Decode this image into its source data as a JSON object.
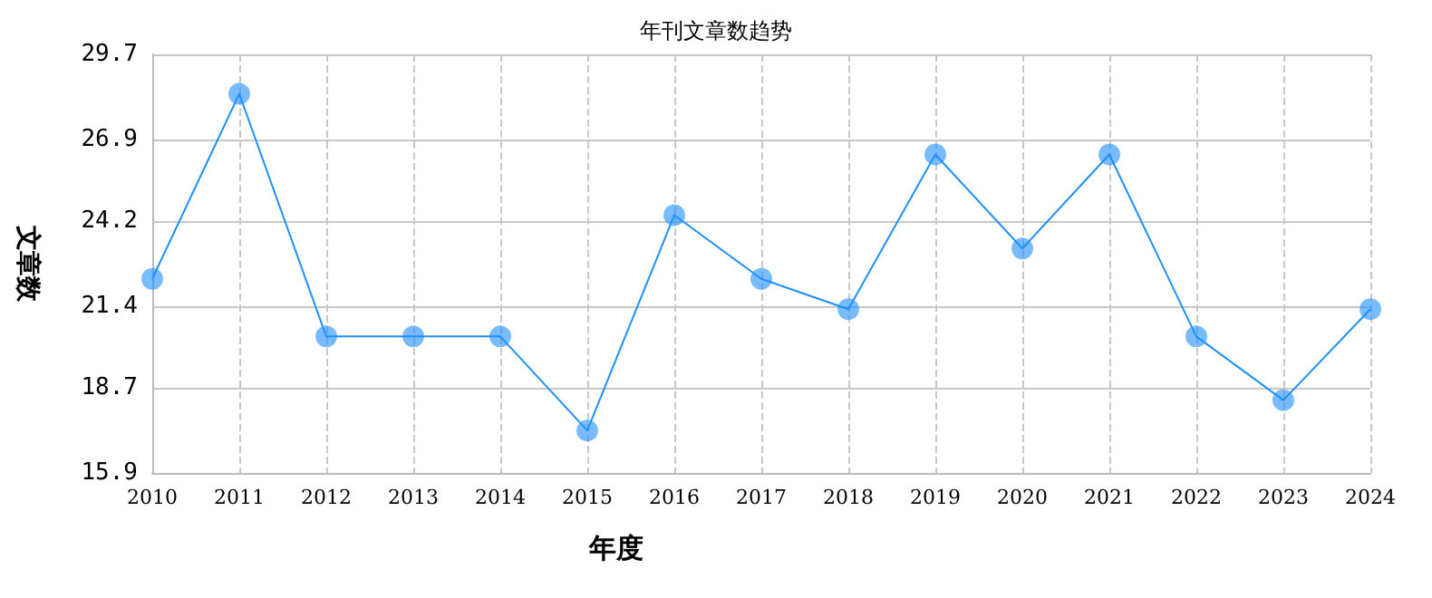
{
  "chart_data": {
    "type": "line",
    "title": "年刊文章数趋势",
    "xlabel": "年度",
    "ylabel": "文章数",
    "categories": [
      "2010",
      "2011",
      "2012",
      "2013",
      "2014",
      "2015",
      "2016",
      "2017",
      "2018",
      "2019",
      "2020",
      "2021",
      "2022",
      "2023",
      "2024"
    ],
    "series": [
      {
        "color": "#1e90ff",
        "values": [
          22.3,
          28.4,
          20.4,
          20.4,
          20.4,
          17.3,
          24.4,
          22.3,
          21.3,
          26.4,
          23.3,
          26.4,
          20.4,
          18.3,
          21.3
        ]
      }
    ],
    "ylim": [
      15.9,
      29.7
    ],
    "yticks": [
      15.9,
      18.7,
      21.4,
      24.2,
      26.9,
      29.7
    ],
    "grid": true,
    "marker": "circle",
    "line_style": "solid"
  }
}
